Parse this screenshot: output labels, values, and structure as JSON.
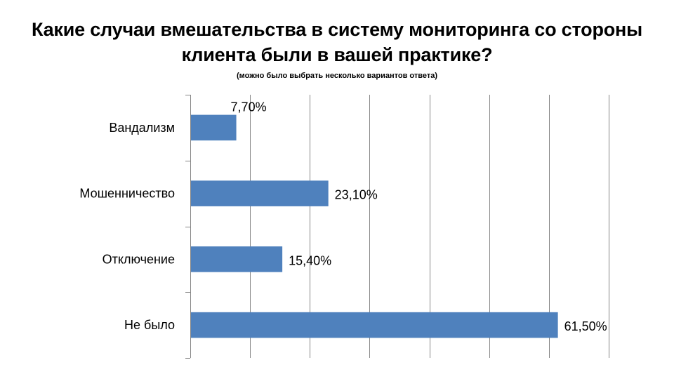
{
  "title": {
    "line1": "Какие случаи вмешательства в систему мониторинга со стороны",
    "line2": "клиента были в вашей практике?",
    "subtitle": "(можно было выбрать несколько вариантов ответа)"
  },
  "colors": {
    "bar": "#4F81BD",
    "grid": "#868686",
    "axis": "#868686"
  },
  "chart_data": {
    "type": "bar",
    "orientation": "horizontal",
    "categories": [
      "Вандализм",
      "Мошенничество",
      "Отключение",
      "Не было"
    ],
    "values": [
      7.7,
      23.1,
      15.4,
      61.5
    ],
    "value_labels": [
      "7,70%",
      "23,10%",
      "15,40%",
      "61,50%"
    ],
    "xlim": [
      0,
      70
    ],
    "grid": true,
    "unit": "%"
  }
}
